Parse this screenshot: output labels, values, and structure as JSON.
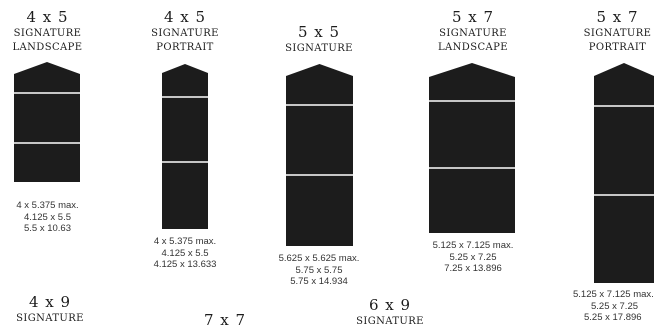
{
  "colors": {
    "card_fill": "#1c1c1c",
    "fold_line": "#ffffff",
    "text": "#1c1c1c"
  },
  "items": [
    {
      "size": "4 x 5",
      "type_line1": "SIGNATURE",
      "type_line2": "LANDSCAPE",
      "dims": [
        "4 x 5.375 max.",
        "4.125 x 5.5",
        "5.5 x 10.63"
      ]
    },
    {
      "size": "4 x 5",
      "type_line1": "SIGNATURE",
      "type_line2": "PORTRAIT",
      "dims": [
        "4 x 5.375 max.",
        "4.125 x 5.5",
        "4.125 x 13.633"
      ]
    },
    {
      "size": "5 x 5",
      "type_line1": "SIGNATURE",
      "type_line2": "",
      "dims": [
        "5.625 x 5.625 max.",
        "5.75 x 5.75",
        "5.75 x 14.934"
      ]
    },
    {
      "size": "5 x 7",
      "type_line1": "SIGNATURE",
      "type_line2": "LANDSCAPE",
      "dims": [
        "5.125 x 7.125 max.",
        "5.25 x 7.25",
        "7.25 x 13.896"
      ]
    },
    {
      "size": "5 x 7",
      "type_line1": "SIGNATURE",
      "type_line2": "PORTRAIT",
      "dims": [
        "5.125 x 7.125 max.",
        "5.25 x 7.25",
        "5.25 x 17.896"
      ]
    },
    {
      "size": "4 x 9",
      "type_line1": "SIGNATURE",
      "type_line2": "",
      "dims": []
    },
    {
      "size": "7 x 7",
      "type_line1": "",
      "type_line2": "",
      "dims": []
    },
    {
      "size": "6 x 9",
      "type_line1": "SIGNATURE",
      "type_line2": "",
      "dims": []
    }
  ]
}
